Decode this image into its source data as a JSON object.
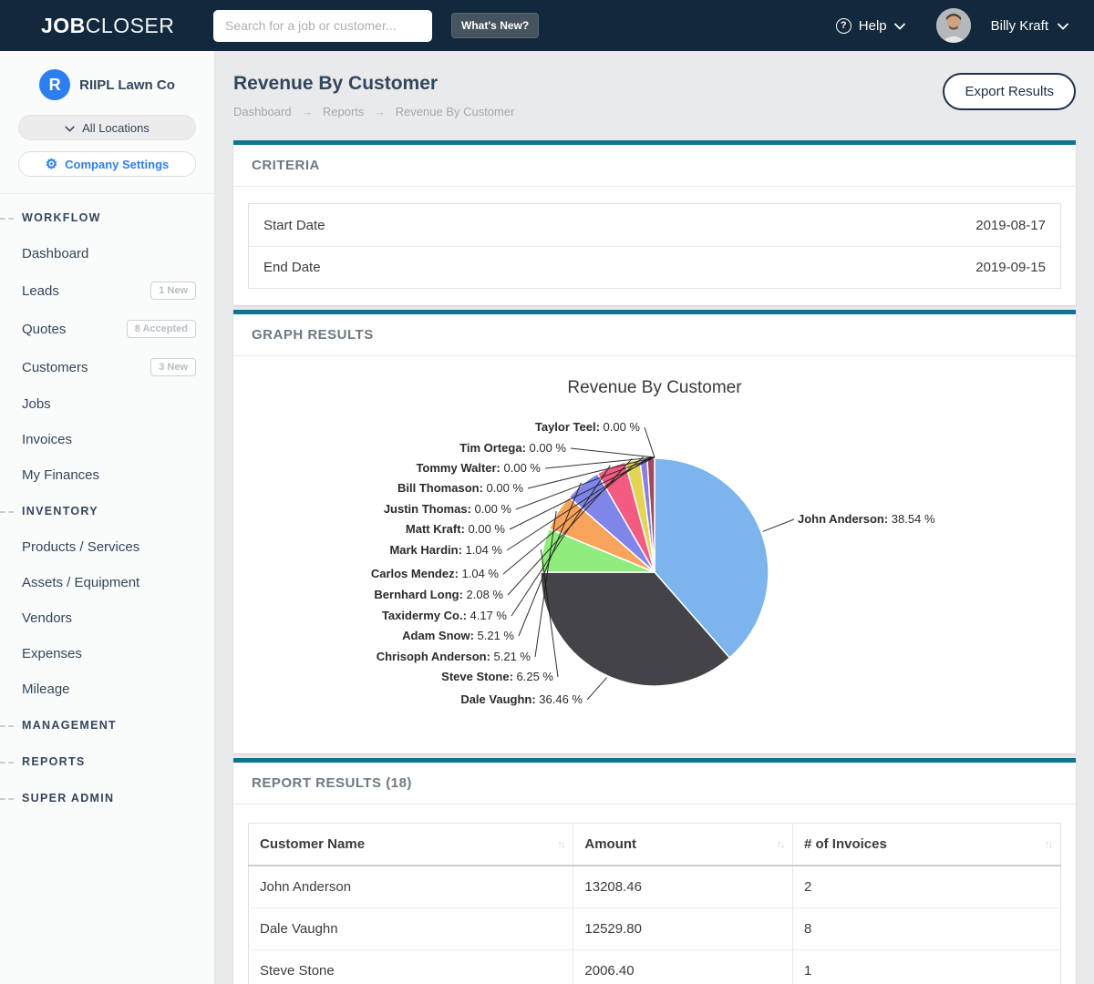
{
  "topbar": {
    "logo_bold": "JOB",
    "logo_light": "CLOSER",
    "search_placeholder": "Search for a job or customer...",
    "whats_new_label": "What's New?",
    "help_label": "Help",
    "help_icon_glyph": "?",
    "user_name": "Billy Kraft"
  },
  "sidebar": {
    "company_initial": "R",
    "company_name": "RIIPL Lawn Co",
    "locations_label": "All Locations",
    "company_settings_label": "Company Settings",
    "sections": [
      {
        "label": "WORKFLOW",
        "items": [
          {
            "label": "Dashboard",
            "badge": ""
          },
          {
            "label": "Leads",
            "badge": "1 New"
          },
          {
            "label": "Quotes",
            "badge": "8 Accepted"
          },
          {
            "label": "Customers",
            "badge": "3 New"
          },
          {
            "label": "Jobs",
            "badge": ""
          },
          {
            "label": "Invoices",
            "badge": ""
          },
          {
            "label": "My Finances",
            "badge": ""
          }
        ]
      },
      {
        "label": "INVENTORY",
        "items": [
          {
            "label": "Products / Services",
            "badge": ""
          },
          {
            "label": "Assets / Equipment",
            "badge": ""
          },
          {
            "label": "Vendors",
            "badge": ""
          },
          {
            "label": "Expenses",
            "badge": ""
          },
          {
            "label": "Mileage",
            "badge": ""
          }
        ]
      },
      {
        "label": "MANAGEMENT",
        "items": []
      },
      {
        "label": "REPORTS",
        "items": []
      },
      {
        "label": "SUPER ADMIN",
        "items": []
      }
    ]
  },
  "page": {
    "title": "Revenue By Customer",
    "breadcrumb": [
      "Dashboard",
      "Reports",
      "Revenue By Customer"
    ],
    "export_label": "Export Results"
  },
  "criteria": {
    "section_title": "CRITERIA",
    "rows": [
      {
        "label": "Start Date",
        "value": "2019-08-17"
      },
      {
        "label": "End Date",
        "value": "2019-09-15"
      }
    ]
  },
  "graph": {
    "section_title": "GRAPH RESULTS"
  },
  "chart_data": {
    "type": "pie",
    "title": "Revenue By Customer",
    "unit": "%",
    "slices": [
      {
        "name": "John Anderson",
        "pct": 38.54,
        "pct_label": "38.54 %",
        "color": "#7cb5ec"
      },
      {
        "name": "Dale Vaughn",
        "pct": 36.46,
        "pct_label": "36.46 %",
        "color": "#434348"
      },
      {
        "name": "Steve Stone",
        "pct": 6.25,
        "pct_label": "6.25 %",
        "color": "#90ed7d"
      },
      {
        "name": "Chrisoph Anderson",
        "pct": 5.21,
        "pct_label": "5.21 %",
        "color": "#f7a35c"
      },
      {
        "name": "Adam Snow",
        "pct": 5.21,
        "pct_label": "5.21 %",
        "color": "#8085e9"
      },
      {
        "name": "Taxidermy Co.",
        "pct": 4.17,
        "pct_label": "4.17 %",
        "color": "#f15c80"
      },
      {
        "name": "Bernhard Long",
        "pct": 2.08,
        "pct_label": "2.08 %",
        "color": "#e4d354"
      },
      {
        "name": "Carlos Mendez",
        "pct": 1.04,
        "pct_label": "1.04 %",
        "color": "#8a7ee3"
      },
      {
        "name": "Mark Hardin",
        "pct": 1.04,
        "pct_label": "1.04 %",
        "color": "#9e4b5c"
      },
      {
        "name": "Matt Kraft",
        "pct": 0.0,
        "pct_label": "0.00 %",
        "color": null
      },
      {
        "name": "Justin Thomas",
        "pct": 0.0,
        "pct_label": "0.00 %",
        "color": null
      },
      {
        "name": "Bill Thomason",
        "pct": 0.0,
        "pct_label": "0.00 %",
        "color": null
      },
      {
        "name": "Tommy Walter",
        "pct": 0.0,
        "pct_label": "0.00 %",
        "color": null
      },
      {
        "name": "Tim Ortega",
        "pct": 0.0,
        "pct_label": "0.00 %",
        "color": null
      },
      {
        "name": "Taylor Teel",
        "pct": 0.0,
        "pct_label": "0.00 %",
        "color": null
      }
    ]
  },
  "report": {
    "section_title": "REPORT RESULTS (18)",
    "columns": [
      "Customer Name",
      "Amount",
      "# of Invoices"
    ],
    "rows": [
      [
        "John Anderson",
        "13208.46",
        "2"
      ],
      [
        "Dale Vaughn",
        "12529.80",
        "8"
      ],
      [
        "Steve Stone",
        "2006.40",
        "1"
      ]
    ]
  },
  "icons": {
    "gear": "⚙",
    "breadcrumb_separator": "→",
    "sort": "↑↓"
  },
  "colors": {
    "topbar_bg": "#12293d",
    "accent_teal": "#0f7392",
    "brand_blue": "#2d7ff0"
  }
}
